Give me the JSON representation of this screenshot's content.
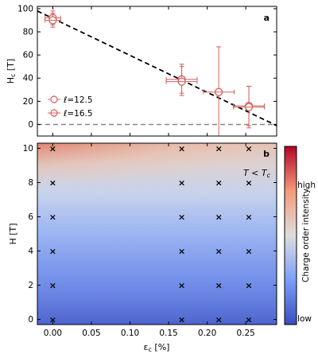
{
  "chart_data": [
    {
      "panel": "a",
      "type": "scatter",
      "ylabel": "H_c [T]",
      "xlim": [
        -0.02,
        0.29
      ],
      "ylim": [
        -10,
        102
      ],
      "yticks": [
        0,
        20,
        40,
        60,
        80,
        100
      ],
      "legend_position": "lower-left",
      "series": [
        {
          "name": "ℓ=12.5",
          "marker": "open-circle",
          "points": [
            {
              "x": 0.0,
              "y": 92,
              "xerr": 0.01,
              "yerr_low": 6,
              "yerr_high": 6
            },
            {
              "x": 0.167,
              "y": 39,
              "xerr": 0.02,
              "yerr_low": 12,
              "yerr_high": 13
            },
            {
              "x": 0.254,
              "y": 16,
              "xerr": 0.02,
              "yerr_low": 17,
              "yerr_high": 17
            }
          ]
        },
        {
          "name": "ℓ=16.5",
          "marker": "open-circle-cross",
          "points": [
            {
              "x": 0.0,
              "y": 90,
              "xerr": 0.01,
              "yerr_low": 6,
              "yerr_high": 6
            },
            {
              "x": 0.167,
              "y": 37,
              "xerr": 0.02,
              "yerr_low": 12,
              "yerr_high": 13
            },
            {
              "x": 0.215,
              "y": 28,
              "xerr": 0.02,
              "yerr_low": 39,
              "yerr_high": 39
            },
            {
              "x": 0.254,
              "y": 15,
              "xerr": 0.02,
              "yerr_low": 18,
              "yerr_high": 18
            }
          ]
        }
      ],
      "fit_line": {
        "x": [
          -0.02,
          0.29
        ],
        "y": [
          98,
          -1
        ],
        "style": "dashed",
        "color": "#000000"
      },
      "baseline": {
        "y": 0,
        "style": "dashed",
        "color": "#888888"
      }
    },
    {
      "panel": "b",
      "type": "heatmap",
      "xlabel": "ε_c [%]",
      "ylabel": "H [T]",
      "annotation": "T < T_c",
      "xlim": [
        -0.02,
        0.29
      ],
      "ylim": [
        -0.3,
        10.3
      ],
      "xticks": [
        0.0,
        0.05,
        0.1,
        0.15,
        0.2,
        0.25
      ],
      "yticks": [
        0,
        2,
        4,
        6,
        8,
        10
      ],
      "colorbar": {
        "label": "Charge order intensity",
        "high": "high",
        "low": "low"
      },
      "markers": [
        {
          "x": 0.0,
          "y": [
            0,
            2,
            4,
            6,
            8,
            10
          ]
        },
        {
          "x": 0.167,
          "y": [
            0,
            2,
            4,
            6,
            8,
            10
          ]
        },
        {
          "x": 0.215,
          "y": [
            0,
            2,
            4,
            6,
            8,
            10
          ]
        },
        {
          "x": 0.254,
          "y": [
            0,
            2,
            4,
            6,
            8,
            10
          ]
        }
      ]
    }
  ],
  "colors": {
    "marker": "#d4605d",
    "fill": "#ffffff",
    "cmap_high": "#b40426",
    "cmap_mid": "#dddddd",
    "cmap_low": "#3b4cc0"
  }
}
